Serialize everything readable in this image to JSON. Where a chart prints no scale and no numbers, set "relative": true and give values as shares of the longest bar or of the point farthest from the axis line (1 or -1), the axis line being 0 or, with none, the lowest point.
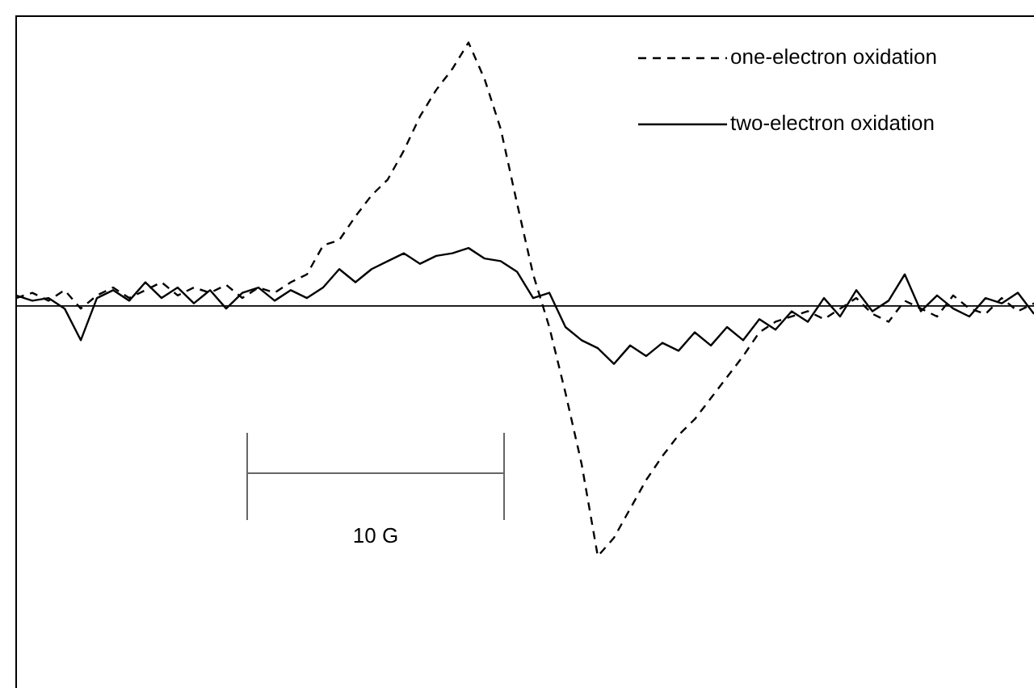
{
  "chart_data": {
    "type": "line",
    "relative": true,
    "categories": [
      null,
      null,
      null,
      null,
      null,
      null,
      null,
      null,
      null,
      null,
      null,
      null,
      null,
      null,
      null,
      null,
      null,
      null,
      null,
      null,
      null,
      null,
      null,
      null,
      null,
      null,
      null,
      null,
      null,
      null,
      null,
      null,
      null,
      null,
      null,
      null,
      null,
      null,
      null,
      null,
      null,
      null,
      null,
      null,
      null,
      null,
      null,
      null,
      null,
      null,
      null,
      null,
      null,
      null,
      null,
      null,
      null,
      null,
      null,
      null,
      null,
      null,
      null,
      null
    ],
    "series": [
      {
        "name": "one-electron oxidation",
        "color": "#000000",
        "line_style": "dashed",
        "values": [
          0.03,
          0.05,
          0.02,
          0.06,
          -0.01,
          0.04,
          0.07,
          0.03,
          0.06,
          0.09,
          0.04,
          0.07,
          0.05,
          0.08,
          0.03,
          0.07,
          0.05,
          0.09,
          0.12,
          0.23,
          0.25,
          0.34,
          0.42,
          0.48,
          0.59,
          0.72,
          0.82,
          0.9,
          1,
          0.86,
          0.67,
          0.39,
          0.12,
          -0.08,
          -0.33,
          -0.6,
          -0.95,
          -0.88,
          -0.77,
          -0.66,
          -0.57,
          -0.49,
          -0.43,
          -0.35,
          -0.27,
          -0.19,
          -0.1,
          -0.06,
          -0.04,
          -0.02,
          -0.05,
          -0.01,
          0.03,
          -0.03,
          -0.06,
          0.02,
          -0.01,
          -0.04,
          0.04,
          -0.01,
          -0.03,
          0.03,
          -0.02,
          0.01
        ]
      },
      {
        "name": "two-electron oxidation",
        "color": "#000000",
        "line_style": "solid",
        "values": [
          0.04,
          0.02,
          0.03,
          -0.01,
          -0.13,
          0.03,
          0.06,
          0.02,
          0.09,
          0.03,
          0.07,
          0.01,
          0.06,
          -0.01,
          0.05,
          0.07,
          0.02,
          0.06,
          0.03,
          0.07,
          0.14,
          0.09,
          0.14,
          0.17,
          0.2,
          0.16,
          0.19,
          0.2,
          0.22,
          0.18,
          0.17,
          0.13,
          0.03,
          0.05,
          -0.08,
          -0.13,
          -0.16,
          -0.22,
          -0.15,
          -0.19,
          -0.14,
          -0.17,
          -0.1,
          -0.15,
          -0.08,
          -0.13,
          -0.05,
          -0.09,
          -0.02,
          -0.06,
          0.03,
          -0.04,
          0.06,
          -0.02,
          0.02,
          0.12,
          -0.02,
          0.04,
          -0.01,
          -0.04,
          0.03,
          0.01,
          0.05,
          -0.03
        ]
      }
    ],
    "marker": "none",
    "legend": "top right",
    "annotations": [
      "10 G"
    ]
  }
}
